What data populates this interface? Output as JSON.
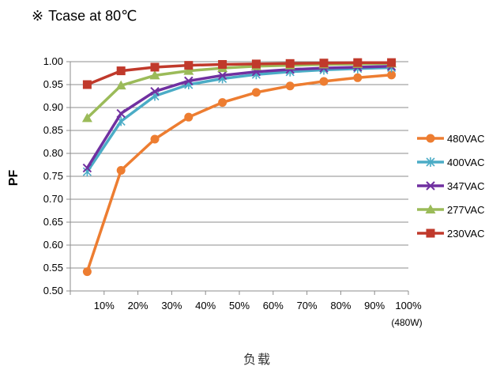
{
  "note": {
    "mark": "※",
    "text": "Tcase at 80℃"
  },
  "chart_data": {
    "type": "line",
    "categories": [
      "10%",
      "20%",
      "30%",
      "40%",
      "50%",
      "60%",
      "70%",
      "80%",
      "90%",
      "100%"
    ],
    "x_sublabel": "(480W)",
    "xlabel": "负载",
    "ylabel": "PF",
    "ylim": [
      0.5,
      1.0
    ],
    "yticks": [
      "0.50",
      "0.55",
      "0.60",
      "0.65",
      "0.70",
      "0.75",
      "0.80",
      "0.85",
      "0.90",
      "0.95",
      "1.00"
    ],
    "grid": true,
    "legend_position": "right",
    "series": [
      {
        "name": "480VAC",
        "color": "#ED7D31",
        "marker": "circle",
        "values": [
          0.542,
          0.763,
          0.831,
          0.879,
          0.911,
          0.933,
          0.947,
          0.957,
          0.965,
          0.971
        ]
      },
      {
        "name": "400VAC",
        "color": "#4BACC6",
        "marker": "asterisk",
        "values": [
          0.76,
          0.87,
          0.925,
          0.95,
          0.963,
          0.972,
          0.978,
          0.982,
          0.985,
          0.987
        ]
      },
      {
        "name": "347VAC",
        "color": "#7030A0",
        "marker": "x",
        "values": [
          0.768,
          0.887,
          0.935,
          0.958,
          0.97,
          0.978,
          0.983,
          0.986,
          0.988,
          0.99
        ]
      },
      {
        "name": "277VAC",
        "color": "#9BBB59",
        "marker": "triangle",
        "values": [
          0.877,
          0.948,
          0.97,
          0.98,
          0.986,
          0.99,
          0.992,
          0.994,
          0.995,
          0.996
        ]
      },
      {
        "name": "230VAC",
        "color": "#C0392B",
        "marker": "square",
        "values": [
          0.95,
          0.98,
          0.988,
          0.992,
          0.994,
          0.995,
          0.996,
          0.997,
          0.998,
          0.998
        ]
      }
    ]
  }
}
